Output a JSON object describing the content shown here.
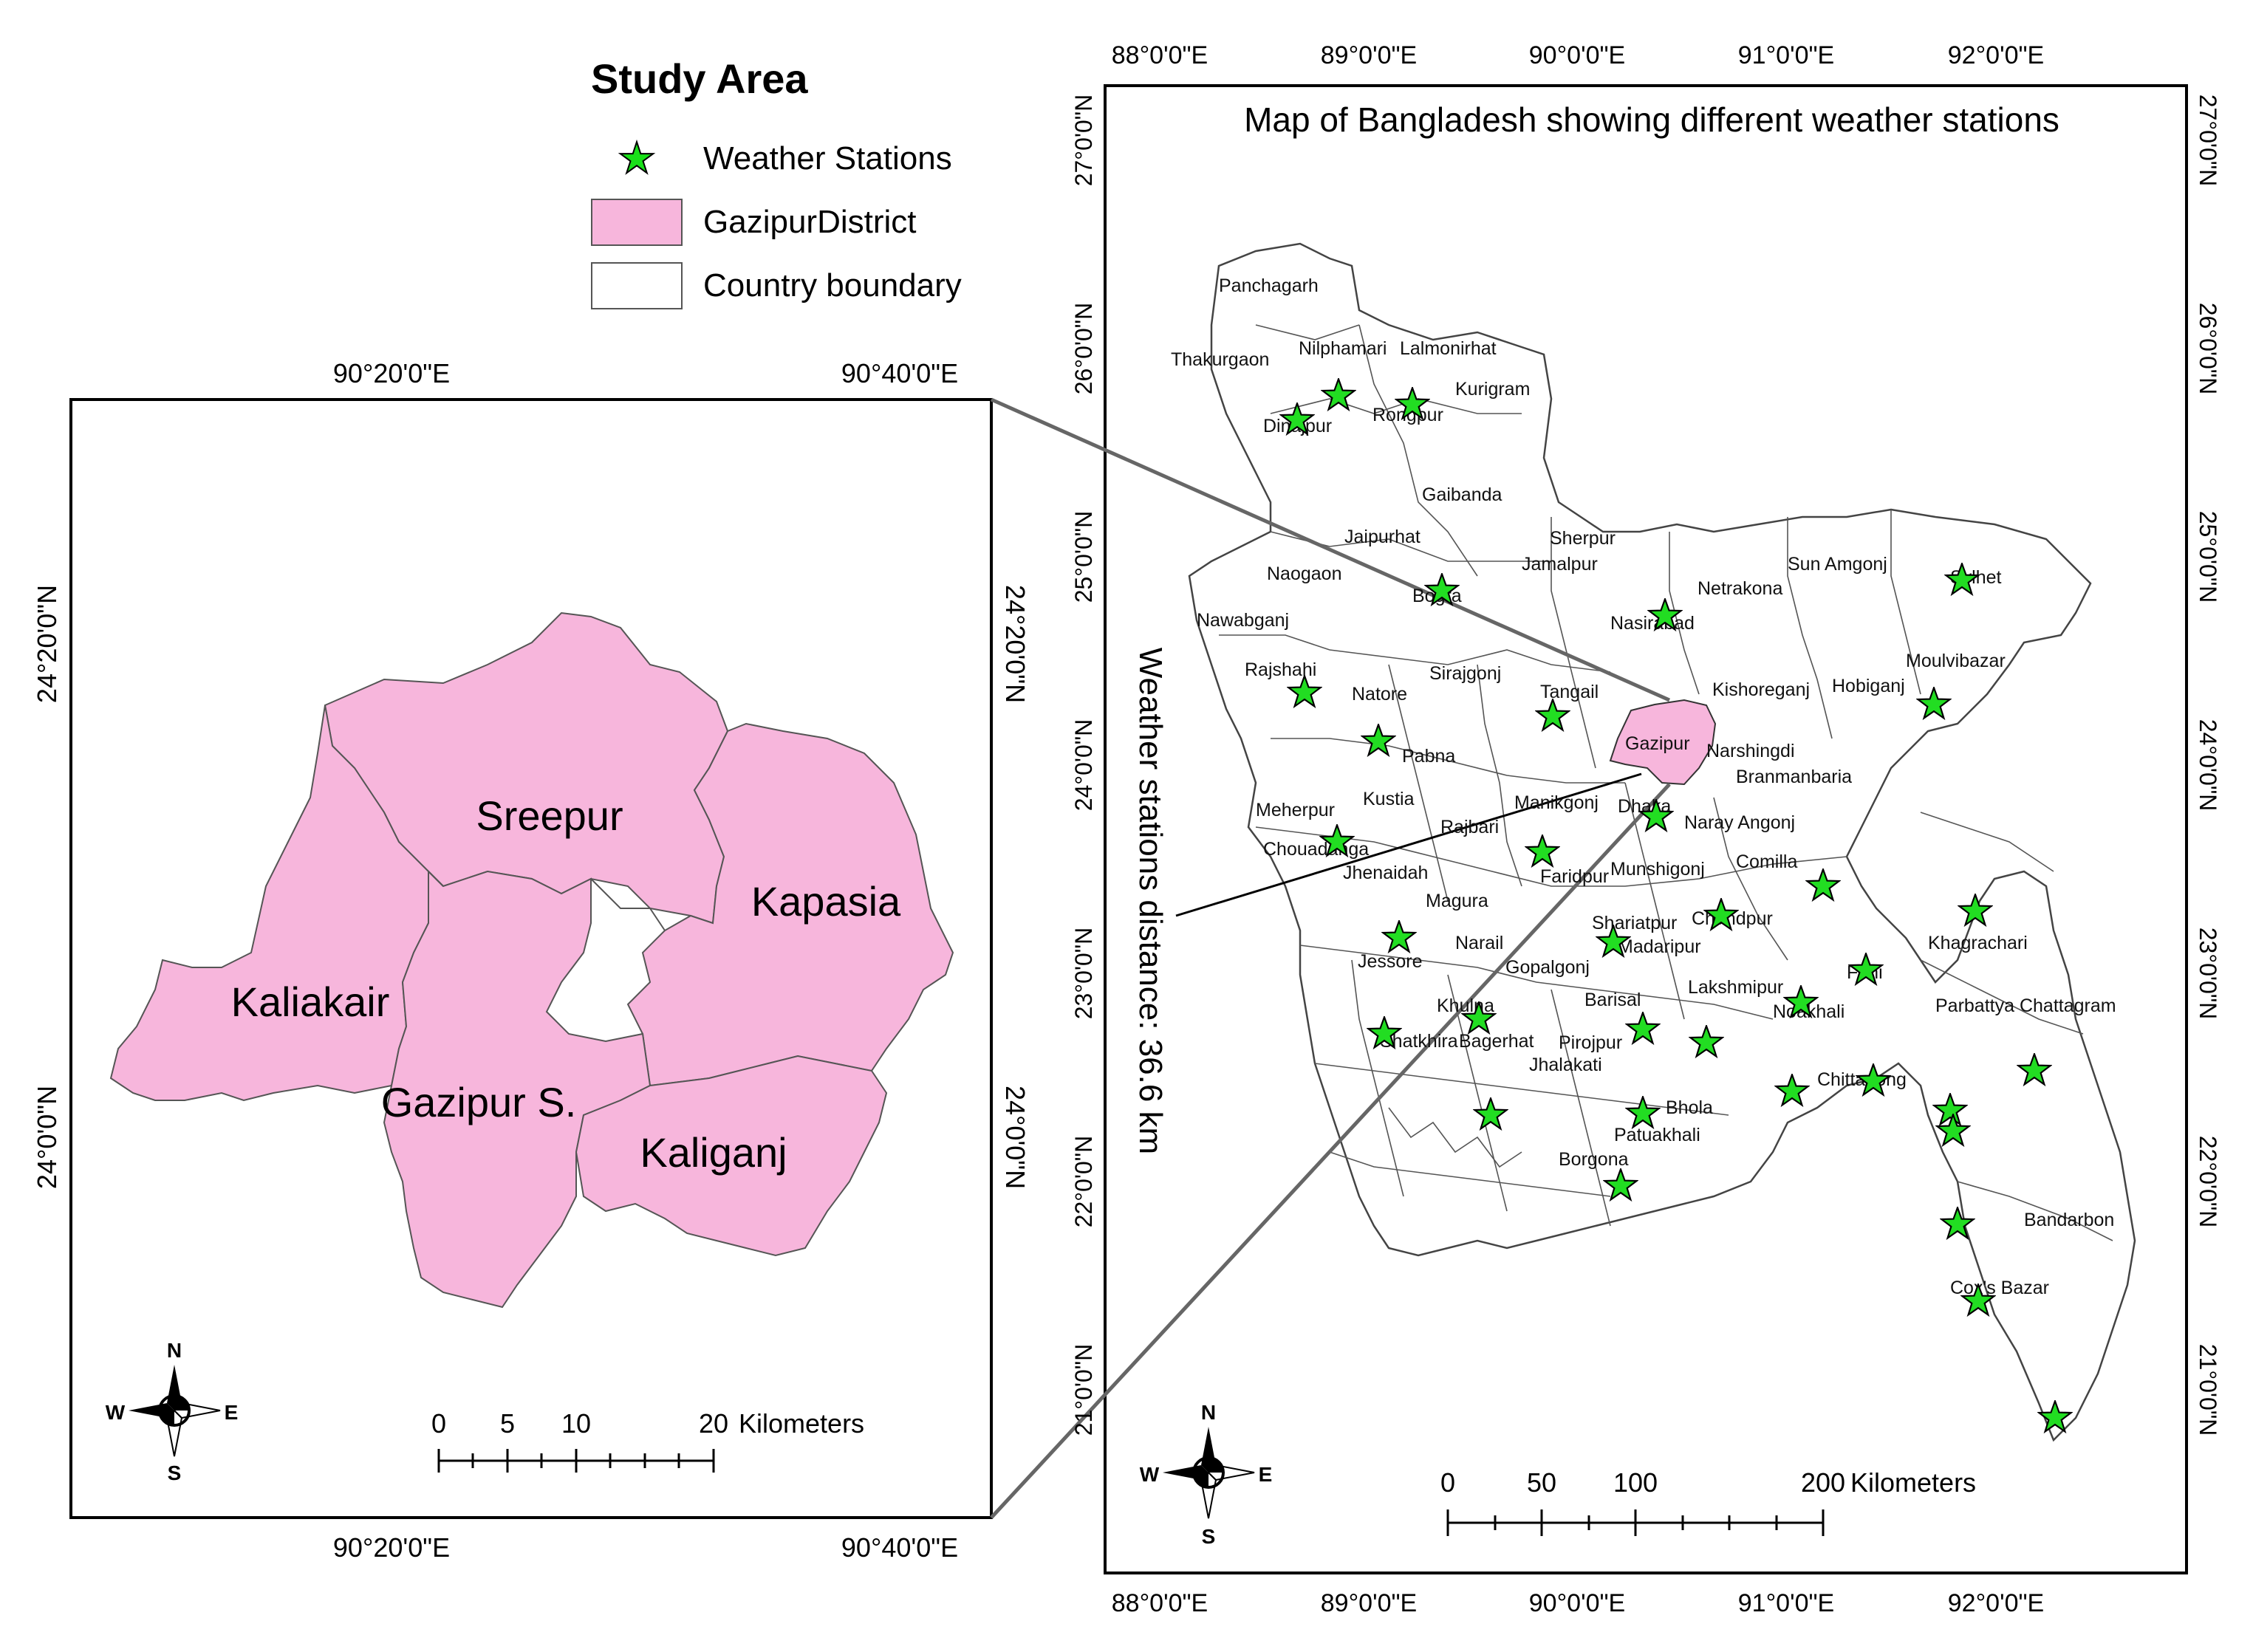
{
  "legend": {
    "title": "Study Area",
    "items": [
      {
        "label": "Weather Stations",
        "symbol": "star",
        "color": "#22dd22"
      },
      {
        "label": "GazipurDistrict",
        "symbol": "fill",
        "color": "#f7b6dc"
      },
      {
        "label": "Country boundary",
        "symbol": "outline",
        "color": "#ffffff"
      }
    ]
  },
  "inset": {
    "top_labels": [
      "90°20'0\"E",
      "90°40'0\"E"
    ],
    "bottom_labels": [
      "90°20'0\"E",
      "90°40'0\"E"
    ],
    "left_labels": [
      "24°20'0\"N",
      "24°0'0\"N"
    ],
    "right_labels": [
      "24°20'0\"N",
      "24°0'0\"N"
    ],
    "regions": [
      "Sreepur",
      "Kapasia",
      "Kaliakair",
      "Gazipur S.",
      "Kaliganj"
    ],
    "scale": {
      "ticks": [
        "0",
        "5",
        "10",
        "20"
      ],
      "unit": "Kilometers"
    },
    "compass": {
      "n": "N",
      "s": "S",
      "e": "E",
      "w": "W"
    }
  },
  "main_map": {
    "title": "Map of Bangladesh showing different weather stations",
    "top_labels": [
      "88°0'0\"E",
      "89°0'0\"E",
      "90°0'0\"E",
      "91°0'0\"E",
      "92°0'0\"E"
    ],
    "bottom_labels": [
      "88°0'0\"E",
      "89°0'0\"E",
      "90°0'0\"E",
      "91°0'0\"E",
      "92°0'0\"E"
    ],
    "left_labels": [
      "27°0'0\"N",
      "26°0'0\"N",
      "25°0'0\"N",
      "24°0'0\"N",
      "23°0'0\"N",
      "22°0'0\"N",
      "21°0'0\"N"
    ],
    "right_labels": [
      "27°0'0\"N",
      "26°0'0\"N",
      "25°0'0\"N",
      "24°0'0\"N",
      "23°0'0\"N",
      "22°0'0\"N",
      "21°0'0\"N"
    ],
    "distance_label": "Weather stations distance: 36.6 km",
    "scale": {
      "ticks": [
        "0",
        "50",
        "100",
        "200"
      ],
      "unit": "Kilometers"
    },
    "compass": {
      "n": "N",
      "s": "S",
      "e": "E",
      "w": "W"
    },
    "district_labels": [
      "Panchagarh",
      "Thakurgaon",
      "Nilphamari",
      "Lalmonirhat",
      "Dinajpur",
      "Rongpur",
      "Kurigram",
      "Gaibanda",
      "Jaipurhat",
      "Sherpur",
      "Jamalpur",
      "Naogaon",
      "Bogra",
      "Sun Amgonj",
      "Sylhet",
      "Netrakona",
      "Nawabganj",
      "Nasirabad",
      "Rajshahi",
      "Natore",
      "Sirajgonj",
      "Tangail",
      "Kishoreganj",
      "Hobiganj",
      "Moulvibazar",
      "Pabna",
      "Gazipur",
      "Narshingdi",
      "Branmanbaria",
      "Meherpur",
      "Kustia",
      "Manikgonj",
      "Dhaka",
      "Chouadanga",
      "Rajbari",
      "Naray Angonj",
      "Jhenaidah",
      "Faridpur",
      "Munshigonj",
      "Comilla",
      "Magura",
      "Shariatpur",
      "Chandpur",
      "Madaripur",
      "Khagrachari",
      "Jessore",
      "Narail",
      "Gopalgonj",
      "Barisal",
      "Lakshmipur",
      "Feni",
      "Khulna",
      "Noakhali",
      "Parbattya Chattagram",
      "Shatkhira",
      "Bagerhat",
      "Pirojpur",
      "Jhalakati",
      "Chittagong",
      "Bhola",
      "Patuakhali",
      "Borgona",
      "Bandarbon",
      "Cox's Bazar"
    ]
  }
}
